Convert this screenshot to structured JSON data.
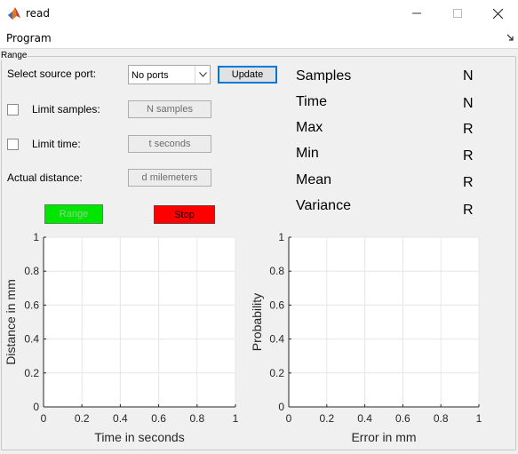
{
  "window": {
    "title": "read",
    "app_icon": "matlab-icon",
    "controls": [
      "minimize-icon",
      "maximize-icon",
      "close-icon"
    ]
  },
  "menu": {
    "program": "Program"
  },
  "panel": {
    "title": "Range"
  },
  "controls": {
    "source_port_label": "Select source port:",
    "source_port_value": "No ports",
    "update_label": "Update",
    "limit_samples_label": "Limit samples:",
    "limit_samples_value": "N samples",
    "limit_samples_checked": false,
    "limit_time_label": "Limit time:",
    "limit_time_value": "t seconds",
    "limit_time_checked": false,
    "actual_distance_label": "Actual distance:",
    "actual_distance_value": "d milemeters",
    "range_label": "Range",
    "range_color": "#00e600",
    "range_enabled": false,
    "stop_label": "Stop",
    "stop_color": "#ff0000"
  },
  "stats": [
    {
      "label": "Samples",
      "value": "N"
    },
    {
      "label": "Time",
      "value": "N"
    },
    {
      "label": "Max",
      "value": "R"
    },
    {
      "label": "Min",
      "value": "R"
    },
    {
      "label": "Mean",
      "value": "R"
    },
    {
      "label": "Variance",
      "value": "R"
    }
  ],
  "chart_data": [
    {
      "type": "line",
      "title": "",
      "xlabel": "Time in seconds",
      "ylabel": "Distance in mm",
      "xlim": [
        0,
        1
      ],
      "ylim": [
        0,
        1
      ],
      "xticks": [
        "0",
        "0.2",
        "0.4",
        "0.6",
        "0.8",
        "1"
      ],
      "yticks": [
        "0",
        "0.2",
        "0.4",
        "0.6",
        "0.8",
        "1"
      ],
      "grid": true,
      "series": []
    },
    {
      "type": "line",
      "title": "",
      "xlabel": "Error in mm",
      "ylabel": "Probability",
      "xlim": [
        0,
        1
      ],
      "ylim": [
        0,
        1
      ],
      "xticks": [
        "0",
        "0.2",
        "0.4",
        "0.6",
        "0.8",
        "1"
      ],
      "yticks": [
        "0",
        "0.2",
        "0.4",
        "0.6",
        "0.8",
        "1"
      ],
      "grid": true,
      "series": []
    }
  ]
}
